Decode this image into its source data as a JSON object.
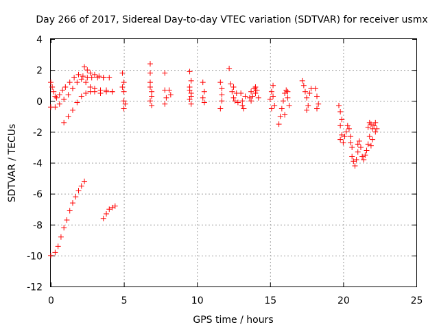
{
  "chart_data": {
    "type": "scatter",
    "title": "Day 266 of 2017, Sidereal Day-to-day VTEC variation (SDTVAR) for receiver usmx",
    "xlabel": "GPS time / hours",
    "ylabel": "SDTVAR / TECUs",
    "xlim": [
      0,
      25
    ],
    "ylim": [
      -12,
      4
    ],
    "xticks": [
      "0",
      "5",
      "10",
      "15",
      "20",
      "25"
    ],
    "yticks": [
      "4",
      "2",
      "0",
      "-2",
      "-4",
      "-6",
      "-8",
      "-10",
      "-12"
    ],
    "grid": true,
    "marker": "+",
    "color": "#ff0000",
    "series": [
      {
        "name": "SDTVAR",
        "points": [
          [
            0.0,
            1.2
          ],
          [
            0.1,
            0.9
          ],
          [
            0.2,
            0.6
          ],
          [
            0.3,
            0.3
          ],
          [
            0.4,
            0.2
          ],
          [
            0.6,
            0.4
          ],
          [
            0.8,
            0.7
          ],
          [
            1.0,
            0.9
          ],
          [
            1.3,
            1.2
          ],
          [
            1.6,
            1.5
          ],
          [
            1.9,
            1.7
          ],
          [
            2.2,
            1.6
          ],
          [
            2.5,
            1.5
          ],
          [
            2.8,
            1.5
          ],
          [
            3.2,
            1.5
          ],
          [
            3.6,
            1.5
          ],
          [
            4.0,
            1.5
          ],
          [
            0.0,
            -0.4
          ],
          [
            0.3,
            -0.4
          ],
          [
            0.6,
            -0.2
          ],
          [
            0.9,
            0.1
          ],
          [
            1.2,
            0.4
          ],
          [
            1.5,
            0.8
          ],
          [
            1.8,
            1.2
          ],
          [
            2.1,
            1.4
          ],
          [
            2.4,
            1.2
          ],
          [
            2.7,
            0.9
          ],
          [
            3.0,
            0.8
          ],
          [
            3.4,
            0.7
          ],
          [
            3.8,
            0.7
          ],
          [
            4.2,
            0.6
          ],
          [
            0.9,
            -1.4
          ],
          [
            1.2,
            -1.0
          ],
          [
            1.5,
            -0.6
          ],
          [
            1.8,
            -0.1
          ],
          [
            2.1,
            0.3
          ],
          [
            2.4,
            0.5
          ],
          [
            2.7,
            0.6
          ],
          [
            3.0,
            0.6
          ],
          [
            3.4,
            0.5
          ],
          [
            3.8,
            0.6
          ],
          [
            4.2,
            0.6
          ],
          [
            2.3,
            2.2
          ],
          [
            2.5,
            2.0
          ],
          [
            2.7,
            1.8
          ],
          [
            3.0,
            1.7
          ],
          [
            3.3,
            1.6
          ],
          [
            3.6,
            1.5
          ],
          [
            0.0,
            -10.0
          ],
          [
            0.3,
            -9.8
          ],
          [
            0.5,
            -9.4
          ],
          [
            0.7,
            -8.8
          ],
          [
            0.9,
            -8.2
          ],
          [
            1.1,
            -7.7
          ],
          [
            1.3,
            -7.1
          ],
          [
            1.5,
            -6.6
          ],
          [
            1.7,
            -6.2
          ],
          [
            1.9,
            -5.8
          ],
          [
            2.1,
            -5.5
          ],
          [
            2.3,
            -5.2
          ],
          [
            3.6,
            -7.6
          ],
          [
            3.8,
            -7.3
          ],
          [
            4.0,
            -7.0
          ],
          [
            4.2,
            -6.9
          ],
          [
            4.4,
            -6.8
          ],
          [
            4.9,
            1.8
          ],
          [
            5.0,
            1.2
          ],
          [
            5.0,
            0.6
          ],
          [
            5.0,
            0.0
          ],
          [
            5.0,
            -0.5
          ],
          [
            4.9,
            0.9
          ],
          [
            5.1,
            -0.2
          ],
          [
            6.8,
            2.4
          ],
          [
            6.8,
            1.8
          ],
          [
            6.8,
            1.2
          ],
          [
            6.9,
            0.6
          ],
          [
            6.8,
            0.0
          ],
          [
            6.9,
            -0.3
          ],
          [
            6.8,
            0.9
          ],
          [
            6.9,
            0.3
          ],
          [
            7.8,
            1.8
          ],
          [
            7.8,
            0.7
          ],
          [
            7.9,
            0.2
          ],
          [
            7.8,
            -0.2
          ],
          [
            8.1,
            0.7
          ],
          [
            8.2,
            0.4
          ],
          [
            9.5,
            1.9
          ],
          [
            9.6,
            1.3
          ],
          [
            9.5,
            0.9
          ],
          [
            9.6,
            0.5
          ],
          [
            9.5,
            0.1
          ],
          [
            9.6,
            -0.2
          ],
          [
            9.5,
            0.7
          ],
          [
            9.6,
            0.3
          ],
          [
            10.4,
            1.2
          ],
          [
            10.5,
            0.6
          ],
          [
            10.4,
            0.2
          ],
          [
            10.5,
            -0.1
          ],
          [
            11.6,
            1.2
          ],
          [
            11.7,
            0.4
          ],
          [
            11.7,
            0.0
          ],
          [
            11.6,
            -0.5
          ],
          [
            11.7,
            0.8
          ],
          [
            12.2,
            2.1
          ],
          [
            12.3,
            1.1
          ],
          [
            12.4,
            0.6
          ],
          [
            12.5,
            0.2
          ],
          [
            12.6,
            0.0
          ],
          [
            12.7,
            0.5
          ],
          [
            12.8,
            -0.1
          ],
          [
            12.5,
            0.9
          ],
          [
            13.0,
            0.5
          ],
          [
            13.1,
            0.0
          ],
          [
            13.2,
            -0.5
          ],
          [
            13.3,
            0.3
          ],
          [
            13.1,
            -0.3
          ],
          [
            13.6,
            0.2
          ],
          [
            13.7,
            0.6
          ],
          [
            13.8,
            0.3
          ],
          [
            13.9,
            0.8
          ],
          [
            14.0,
            0.5
          ],
          [
            14.1,
            0.7
          ],
          [
            14.2,
            0.2
          ],
          [
            13.7,
            0.0
          ],
          [
            14.0,
            0.9
          ],
          [
            15.0,
            0.1
          ],
          [
            15.1,
            0.6
          ],
          [
            15.2,
            1.0
          ],
          [
            15.3,
            -0.3
          ],
          [
            15.1,
            -0.5
          ],
          [
            15.2,
            0.3
          ],
          [
            15.6,
            -1.5
          ],
          [
            15.7,
            -1.0
          ],
          [
            15.8,
            -0.5
          ],
          [
            15.9,
            0.0
          ],
          [
            16.0,
            0.5
          ],
          [
            16.1,
            0.7
          ],
          [
            16.2,
            0.2
          ],
          [
            16.3,
            -0.3
          ],
          [
            16.0,
            -0.9
          ],
          [
            16.2,
            0.6
          ],
          [
            17.2,
            1.3
          ],
          [
            17.3,
            1.0
          ],
          [
            17.4,
            0.6
          ],
          [
            17.5,
            0.2
          ],
          [
            17.6,
            -0.3
          ],
          [
            17.7,
            0.5
          ],
          [
            17.8,
            0.8
          ],
          [
            17.5,
            -0.6
          ],
          [
            18.1,
            0.8
          ],
          [
            18.2,
            0.3
          ],
          [
            18.3,
            -0.2
          ],
          [
            18.2,
            -0.5
          ],
          [
            19.7,
            -0.3
          ],
          [
            19.8,
            -0.7
          ],
          [
            19.9,
            -1.2
          ],
          [
            19.8,
            -1.6
          ],
          [
            19.9,
            -2.2
          ],
          [
            19.8,
            -2.5
          ],
          [
            20.0,
            -2.7
          ],
          [
            20.1,
            -2.3
          ],
          [
            20.2,
            -2.0
          ],
          [
            20.3,
            -1.6
          ],
          [
            20.4,
            -1.8
          ],
          [
            20.5,
            -2.3
          ],
          [
            20.5,
            -2.7
          ],
          [
            20.6,
            -3.0
          ],
          [
            20.6,
            -3.6
          ],
          [
            20.7,
            -3.9
          ],
          [
            20.8,
            -4.2
          ],
          [
            20.9,
            -3.8
          ],
          [
            21.0,
            -3.3
          ],
          [
            21.0,
            -2.8
          ],
          [
            21.1,
            -2.6
          ],
          [
            21.2,
            -3.0
          ],
          [
            21.3,
            -3.6
          ],
          [
            21.4,
            -3.8
          ],
          [
            21.5,
            -3.5
          ],
          [
            21.6,
            -3.2
          ],
          [
            21.7,
            -2.8
          ],
          [
            21.8,
            -2.3
          ],
          [
            21.7,
            -1.7
          ],
          [
            21.8,
            -1.4
          ],
          [
            21.9,
            -1.5
          ],
          [
            22.0,
            -1.8
          ],
          [
            22.1,
            -1.6
          ],
          [
            22.2,
            -2.0
          ],
          [
            22.3,
            -1.8
          ],
          [
            22.2,
            -1.4
          ],
          [
            22.0,
            -2.5
          ],
          [
            21.9,
            -2.9
          ]
        ]
      }
    ]
  }
}
